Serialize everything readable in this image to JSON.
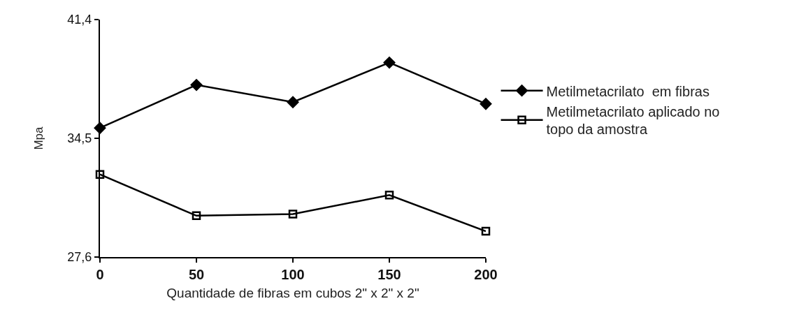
{
  "chart_data": {
    "type": "line",
    "xlabel": "Quantidade de fibras em cubos 2\" x 2\" x 2\"",
    "ylabel": "Mpa",
    "x": [
      0,
      50,
      100,
      150,
      200
    ],
    "series": [
      {
        "name": "Metilmetacrilato  em fibras",
        "color": "#000000",
        "marker": "diamond",
        "values": [
          35.1,
          37.6,
          36.6,
          38.9,
          36.5
        ]
      },
      {
        "name": "Metilmetacrilato aplicado no topo da amostra",
        "color": "#000000",
        "marker": "square",
        "values": [
          32.4,
          30.0,
          30.1,
          31.2,
          29.1
        ]
      }
    ],
    "xlim": [
      0,
      200
    ],
    "xticks": [
      0,
      50,
      100,
      150,
      200
    ],
    "ylim": [
      27.6,
      41.4
    ],
    "yticks": [
      {
        "value": 27.6,
        "label": "27,6"
      },
      {
        "value": 34.5,
        "label": "34,5"
      },
      {
        "value": 41.4,
        "label": "41,4"
      }
    ],
    "grid": false,
    "legend": "right",
    "line_style": "solid"
  }
}
